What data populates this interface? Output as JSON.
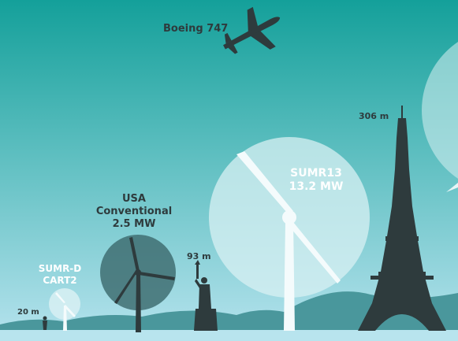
{
  "colors": {
    "sky_top": "#14a09a",
    "sky_bottom": "#b6e3ee",
    "silhouette": "#2e3b3d",
    "hills": "#3f8f94",
    "ground": "#b8e4ee",
    "rotor_disc": "#d8f0f3",
    "usa_disc": "#3f6f72",
    "label_dark": "#2e3b3d",
    "label_light": "#ffffff",
    "blade_white": "#f4fbfc"
  },
  "icons": {
    "airplane": "airplane-silhouette-icon",
    "eiffel_tower": "eiffel-tower-silhouette-icon",
    "statue_of_liberty": "statue-of-liberty-silhouette-icon",
    "person": "person-silhouette-icon"
  },
  "labels": {
    "boeing": "Boeing 747",
    "eiffel_height": "306 m",
    "statue_height": "93 m",
    "small_height": "20 m",
    "sumr13_line1": "SUMR13",
    "sumr13_line2": "13.2 MW",
    "usa_line1": "USA",
    "usa_line2": "Conventional",
    "usa_line3": "2.5 MW",
    "sumrd_line1": "SUMR-D",
    "sumrd_line2": "CART2"
  }
}
